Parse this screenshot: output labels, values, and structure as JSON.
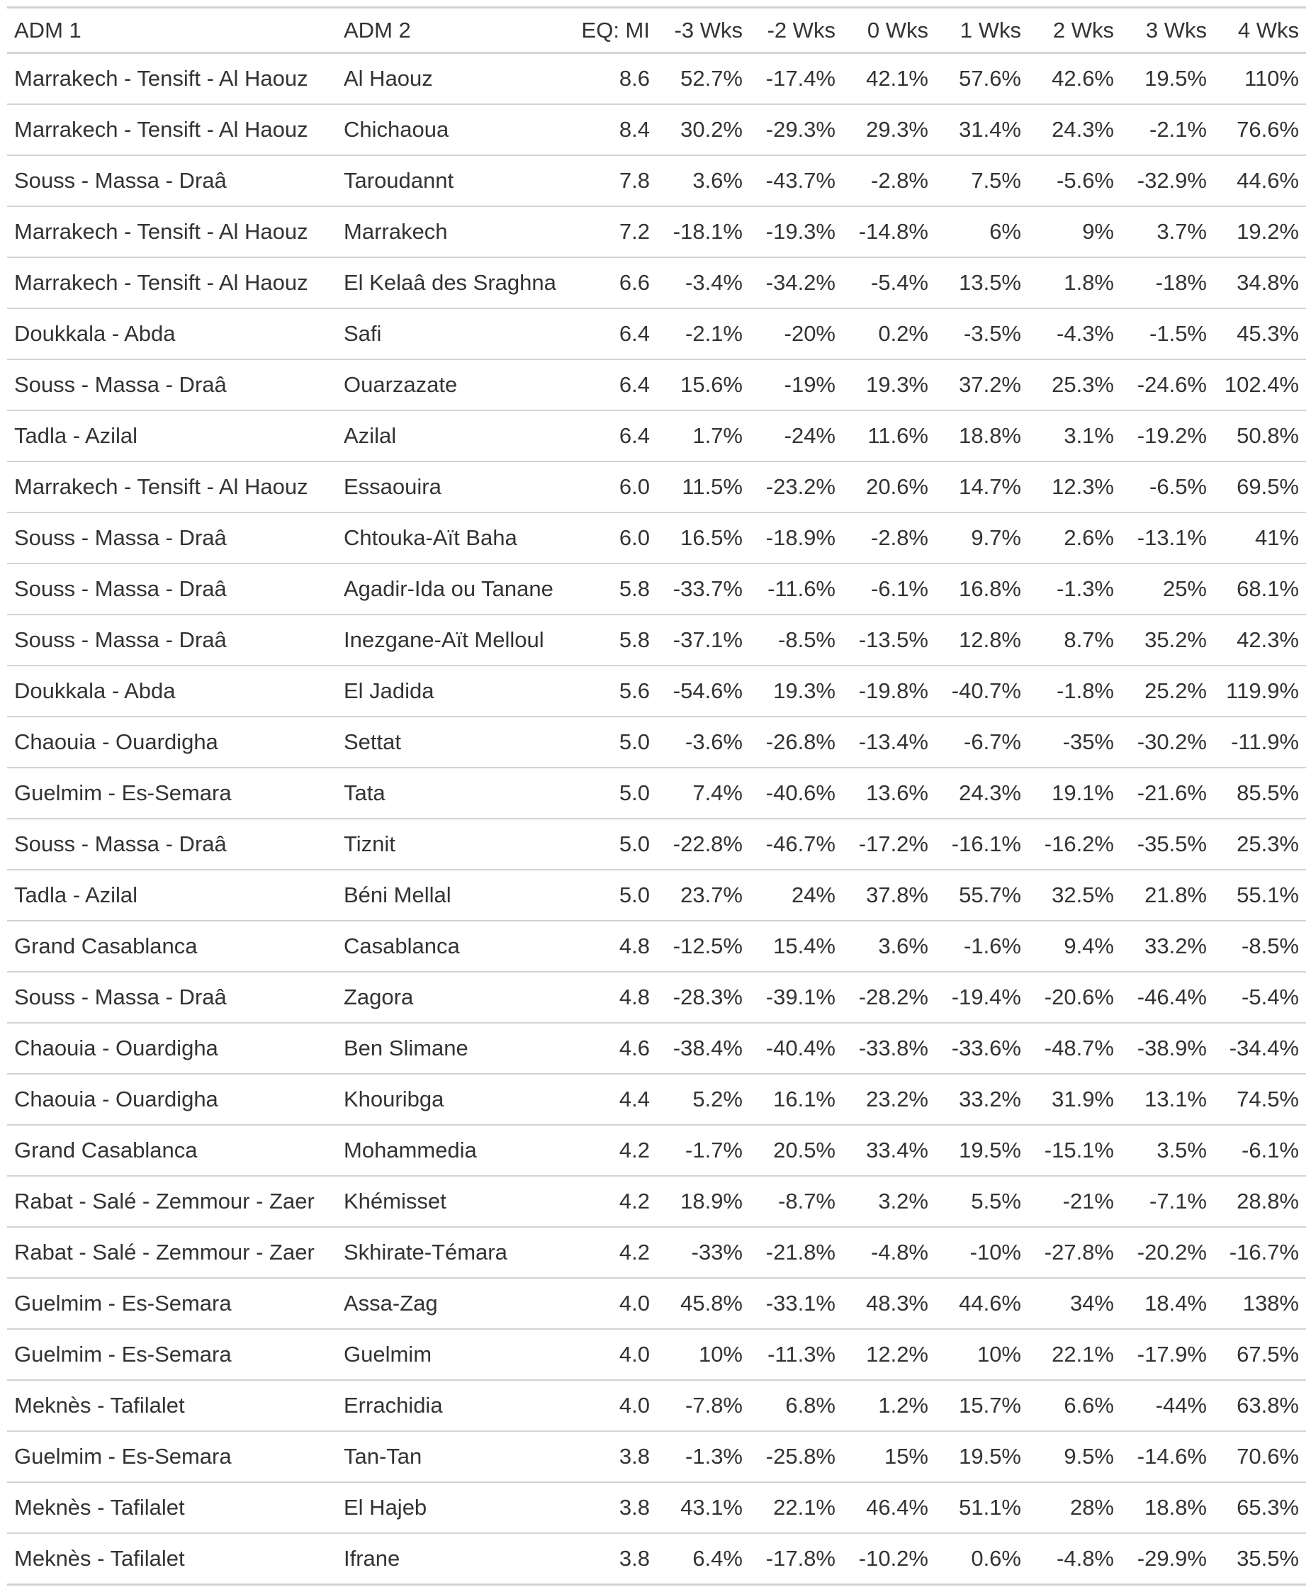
{
  "table": {
    "columns": [
      "ADM 1",
      "ADM 2",
      "EQ: MI",
      "-3 Wks",
      "-2 Wks",
      "0 Wks",
      "1 Wks",
      "2 Wks",
      "3 Wks",
      "4 Wks"
    ],
    "rows": [
      [
        "Marrakech - Tensift - Al Haouz",
        "Al Haouz",
        "8.6",
        "52.7%",
        "-17.4%",
        "42.1%",
        "57.6%",
        "42.6%",
        "19.5%",
        "110%"
      ],
      [
        "Marrakech - Tensift - Al Haouz",
        "Chichaoua",
        "8.4",
        "30.2%",
        "-29.3%",
        "29.3%",
        "31.4%",
        "24.3%",
        "-2.1%",
        "76.6%"
      ],
      [
        "Souss - Massa - Draâ",
        "Taroudannt",
        "7.8",
        "3.6%",
        "-43.7%",
        "-2.8%",
        "7.5%",
        "-5.6%",
        "-32.9%",
        "44.6%"
      ],
      [
        "Marrakech - Tensift - Al Haouz",
        "Marrakech",
        "7.2",
        "-18.1%",
        "-19.3%",
        "-14.8%",
        "6%",
        "9%",
        "3.7%",
        "19.2%"
      ],
      [
        "Marrakech - Tensift - Al Haouz",
        "El Kelaâ des Sraghna",
        "6.6",
        "-3.4%",
        "-34.2%",
        "-5.4%",
        "13.5%",
        "1.8%",
        "-18%",
        "34.8%"
      ],
      [
        "Doukkala - Abda",
        "Safi",
        "6.4",
        "-2.1%",
        "-20%",
        "0.2%",
        "-3.5%",
        "-4.3%",
        "-1.5%",
        "45.3%"
      ],
      [
        "Souss - Massa - Draâ",
        "Ouarzazate",
        "6.4",
        "15.6%",
        "-19%",
        "19.3%",
        "37.2%",
        "25.3%",
        "-24.6%",
        "102.4%"
      ],
      [
        "Tadla - Azilal",
        "Azilal",
        "6.4",
        "1.7%",
        "-24%",
        "11.6%",
        "18.8%",
        "3.1%",
        "-19.2%",
        "50.8%"
      ],
      [
        "Marrakech - Tensift - Al Haouz",
        "Essaouira",
        "6.0",
        "11.5%",
        "-23.2%",
        "20.6%",
        "14.7%",
        "12.3%",
        "-6.5%",
        "69.5%"
      ],
      [
        "Souss - Massa - Draâ",
        "Chtouka-Aït Baha",
        "6.0",
        "16.5%",
        "-18.9%",
        "-2.8%",
        "9.7%",
        "2.6%",
        "-13.1%",
        "41%"
      ],
      [
        "Souss - Massa - Draâ",
        "Agadir-Ida ou Tanane",
        "5.8",
        "-33.7%",
        "-11.6%",
        "-6.1%",
        "16.8%",
        "-1.3%",
        "25%",
        "68.1%"
      ],
      [
        "Souss - Massa - Draâ",
        "Inezgane-Aït Melloul",
        "5.8",
        "-37.1%",
        "-8.5%",
        "-13.5%",
        "12.8%",
        "8.7%",
        "35.2%",
        "42.3%"
      ],
      [
        "Doukkala - Abda",
        "El Jadida",
        "5.6",
        "-54.6%",
        "19.3%",
        "-19.8%",
        "-40.7%",
        "-1.8%",
        "25.2%",
        "119.9%"
      ],
      [
        "Chaouia - Ouardigha",
        "Settat",
        "5.0",
        "-3.6%",
        "-26.8%",
        "-13.4%",
        "-6.7%",
        "-35%",
        "-30.2%",
        "-11.9%"
      ],
      [
        "Guelmim - Es-Semara",
        "Tata",
        "5.0",
        "7.4%",
        "-40.6%",
        "13.6%",
        "24.3%",
        "19.1%",
        "-21.6%",
        "85.5%"
      ],
      [
        "Souss - Massa - Draâ",
        "Tiznit",
        "5.0",
        "-22.8%",
        "-46.7%",
        "-17.2%",
        "-16.1%",
        "-16.2%",
        "-35.5%",
        "25.3%"
      ],
      [
        "Tadla - Azilal",
        "Béni Mellal",
        "5.0",
        "23.7%",
        "24%",
        "37.8%",
        "55.7%",
        "32.5%",
        "21.8%",
        "55.1%"
      ],
      [
        "Grand Casablanca",
        "Casablanca",
        "4.8",
        "-12.5%",
        "15.4%",
        "3.6%",
        "-1.6%",
        "9.4%",
        "33.2%",
        "-8.5%"
      ],
      [
        "Souss - Massa - Draâ",
        "Zagora",
        "4.8",
        "-28.3%",
        "-39.1%",
        "-28.2%",
        "-19.4%",
        "-20.6%",
        "-46.4%",
        "-5.4%"
      ],
      [
        "Chaouia - Ouardigha",
        "Ben Slimane",
        "4.6",
        "-38.4%",
        "-40.4%",
        "-33.8%",
        "-33.6%",
        "-48.7%",
        "-38.9%",
        "-34.4%"
      ],
      [
        "Chaouia - Ouardigha",
        "Khouribga",
        "4.4",
        "5.2%",
        "16.1%",
        "23.2%",
        "33.2%",
        "31.9%",
        "13.1%",
        "74.5%"
      ],
      [
        "Grand Casablanca",
        "Mohammedia",
        "4.2",
        "-1.7%",
        "20.5%",
        "33.4%",
        "19.5%",
        "-15.1%",
        "3.5%",
        "-6.1%"
      ],
      [
        "Rabat - Salé - Zemmour - Zaer",
        "Khémisset",
        "4.2",
        "18.9%",
        "-8.7%",
        "3.2%",
        "5.5%",
        "-21%",
        "-7.1%",
        "28.8%"
      ],
      [
        "Rabat - Salé - Zemmour - Zaer",
        "Skhirate-Témara",
        "4.2",
        "-33%",
        "-21.8%",
        "-4.8%",
        "-10%",
        "-27.8%",
        "-20.2%",
        "-16.7%"
      ],
      [
        "Guelmim - Es-Semara",
        "Assa-Zag",
        "4.0",
        "45.8%",
        "-33.1%",
        "48.3%",
        "44.6%",
        "34%",
        "18.4%",
        "138%"
      ],
      [
        "Guelmim - Es-Semara",
        "Guelmim",
        "4.0",
        "10%",
        "-11.3%",
        "12.2%",
        "10%",
        "22.1%",
        "-17.9%",
        "67.5%"
      ],
      [
        "Meknès - Tafilalet",
        "Errachidia",
        "4.0",
        "-7.8%",
        "6.8%",
        "1.2%",
        "15.7%",
        "6.6%",
        "-44%",
        "63.8%"
      ],
      [
        "Guelmim - Es-Semara",
        "Tan-Tan",
        "3.8",
        "-1.3%",
        "-25.8%",
        "15%",
        "19.5%",
        "9.5%",
        "-14.6%",
        "70.6%"
      ],
      [
        "Meknès - Tafilalet",
        "El Hajeb",
        "3.8",
        "43.1%",
        "22.1%",
        "46.4%",
        "51.1%",
        "28%",
        "18.8%",
        "65.3%"
      ],
      [
        "Meknès - Tafilalet",
        "Ifrane",
        "3.8",
        "6.4%",
        "-17.8%",
        "-10.2%",
        "0.6%",
        "-4.8%",
        "-29.9%",
        "35.5%"
      ]
    ]
  },
  "colors": {
    "text": "#333333",
    "rule": "#d3d3d3",
    "background": "#ffffff"
  }
}
